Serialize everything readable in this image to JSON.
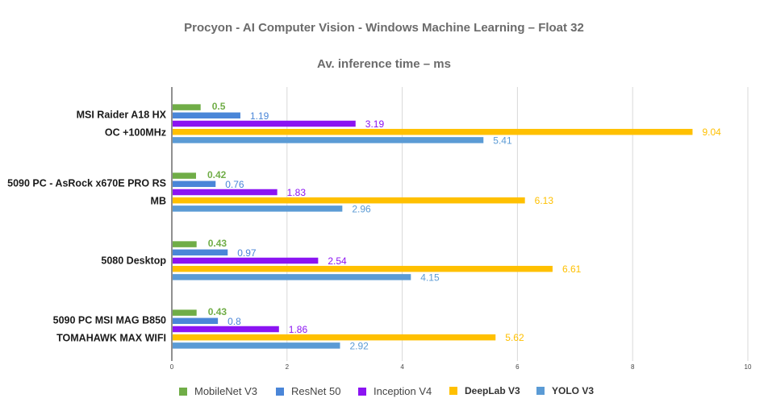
{
  "chart_data": {
    "type": "bar",
    "orientation": "horizontal",
    "title": "Procyon - AI Computer Vision - Windows Machine Learning – Float 32",
    "subtitle": "Av. inference time – ms",
    "xlabel": "",
    "ylabel": "",
    "xlim": [
      0,
      10
    ],
    "x_ticks": [
      "0",
      "2",
      "4",
      "6",
      "8",
      "10"
    ],
    "grid": true,
    "legend_position": "bottom",
    "categories": [
      [
        "MSI Raider A18 HX",
        "OC +100MHz"
      ],
      [
        "5090 PC - AsRock x670E PRO RS",
        "MB"
      ],
      [
        "5080 Desktop"
      ],
      [
        "5090 PC MSI MAG B850",
        "TOMAHAWK MAX WIFI"
      ]
    ],
    "series": [
      {
        "name": "MobileNet V3",
        "color": "#70ad47",
        "values": [
          0.5,
          0.42,
          0.43,
          0.43
        ],
        "labels": [
          "0.5",
          "0.42",
          "0.43",
          "0.43"
        ]
      },
      {
        "name": "ResNet 50",
        "color": "#4a86d8",
        "values": [
          1.19,
          0.76,
          0.97,
          0.8
        ],
        "labels": [
          "1.19",
          "0.76",
          "0.97",
          "0.8"
        ]
      },
      {
        "name": "Inception V4",
        "color": "#8b14f2",
        "values": [
          3.19,
          1.83,
          2.54,
          1.86
        ],
        "labels": [
          "3.19",
          "1.83",
          "2.54",
          "1.86"
        ]
      },
      {
        "name": "DeepLab V3",
        "color": "#ffc000",
        "values": [
          9.04,
          6.13,
          6.61,
          5.62
        ],
        "labels": [
          "9.04",
          "6.13",
          "6.61",
          "5.62"
        ]
      },
      {
        "name": "YOLO V3",
        "color": "#5b9bd5",
        "values": [
          5.41,
          2.96,
          4.15,
          2.92
        ],
        "labels": [
          "5.41",
          "2.96",
          "4.15",
          "2.92"
        ]
      }
    ]
  }
}
